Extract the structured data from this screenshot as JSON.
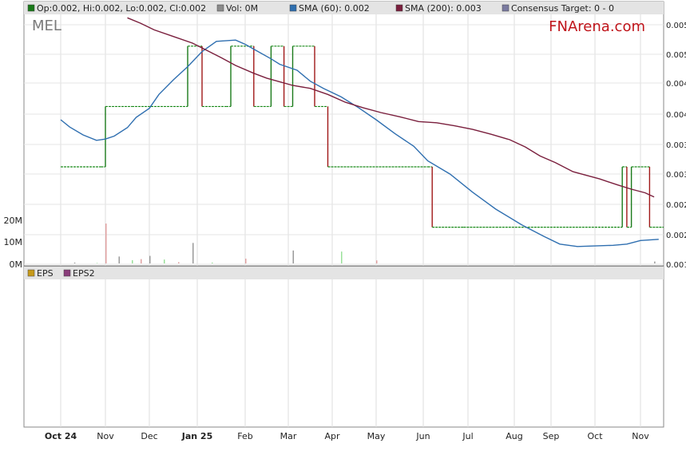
{
  "chart_data": {
    "type": "line",
    "ticker": "MEL",
    "brand": "FNArena.com",
    "legend_top": [
      {
        "label": "Op:0.002, Hi:0.002, Lo:0.002, Cl:0.002",
        "color": "#1a7a1a"
      },
      {
        "label": "Vol: 0M",
        "color": "#8a8a8a"
      },
      {
        "label": "SMA (60): 0.002",
        "color": "#2f6fb0"
      },
      {
        "label": "SMA (200): 0.003",
        "color": "#7a1f3d"
      },
      {
        "label": "Consensus Target: 0 - 0",
        "color": "#7a7aa0"
      }
    ],
    "legend_bottom": [
      {
        "label": "EPS",
        "color": "#c79a1a"
      },
      {
        "label": "EPS2",
        "color": "#8a3d7a"
      }
    ],
    "x_ticks": [
      "Oct 24",
      "Nov",
      "Dec",
      "Jan 25",
      "Feb",
      "Mar",
      "Apr",
      "May",
      "Jun",
      "Jul",
      "Aug",
      "Sep",
      "Oct",
      "Nov"
    ],
    "x_ticks_bold": [
      "Oct 24",
      "Jan 25"
    ],
    "price_ticks": [
      "0.005",
      "0.005",
      "0.004",
      "0.004",
      "0.003",
      "0.003",
      "0.002",
      "0.002",
      "0.001"
    ],
    "volume_ticks": [
      "20M",
      "10M",
      "0M"
    ],
    "ylim": [
      0.0014,
      0.0055
    ],
    "grid": true,
    "price_x": [
      0,
      0.9,
      1.0,
      1.6,
      2.3,
      2.8,
      3.1,
      3.6,
      3.7,
      4.2,
      4.6,
      4.9,
      5.1,
      5.6,
      5.9,
      8.1,
      8.2,
      8.9,
      9.6,
      12.0,
      12.6,
      12.7,
      12.8,
      13.2
    ],
    "price_values": [
      0.003,
      0.003,
      0.004,
      0.004,
      0.004,
      0.005,
      0.004,
      0.004,
      0.005,
      0.004,
      0.005,
      0.004,
      0.005,
      0.004,
      0.003,
      0.003,
      0.002,
      0.002,
      0.002,
      0.002,
      0.003,
      0.002,
      0.003,
      0.002
    ],
    "sma60_x": [
      0.0,
      0.2,
      0.5,
      0.8,
      1.0,
      1.2,
      1.5,
      1.7,
      2.0,
      2.2,
      2.5,
      2.8,
      3.1,
      3.4,
      3.8,
      4.0,
      4.3,
      4.6,
      4.8,
      5.2,
      5.5,
      5.8,
      6.2,
      6.6,
      7.0,
      7.4,
      7.8,
      8.1,
      8.6,
      9.1,
      9.6,
      10.2,
      10.8,
      11.2,
      11.6,
      12.0,
      12.4,
      12.7,
      13.0,
      13.4
    ],
    "sma60_values": [
      0.00378,
      0.00366,
      0.00353,
      0.00344,
      0.00346,
      0.00351,
      0.00365,
      0.00382,
      0.00397,
      0.0042,
      0.00444,
      0.00466,
      0.00491,
      0.00508,
      0.0051,
      0.00503,
      0.00491,
      0.00479,
      0.0047,
      0.0046,
      0.00442,
      0.0043,
      0.00416,
      0.00398,
      0.00378,
      0.00355,
      0.00334,
      0.0031,
      0.00288,
      0.00258,
      0.0023,
      0.00204,
      0.00185,
      0.00172,
      0.00168,
      0.00169,
      0.0017,
      0.00172,
      0.00178,
      0.0018
    ],
    "sma200_x": [
      1.5,
      1.8,
      2.1,
      2.5,
      2.9,
      3.2,
      3.5,
      3.8,
      4.2,
      4.5,
      4.8,
      5.1,
      5.5,
      5.9,
      6.3,
      6.7,
      7.1,
      7.5,
      7.9,
      8.3,
      8.7,
      9.1,
      9.5,
      9.9,
      10.3,
      10.7,
      11.1,
      11.5,
      11.8,
      12.1,
      12.5,
      12.8,
      13.1,
      13.3
    ],
    "sma200_values": [
      0.00547,
      0.00538,
      0.00527,
      0.00516,
      0.00505,
      0.00493,
      0.00481,
      0.00468,
      0.00455,
      0.00447,
      0.00441,
      0.00435,
      0.0043,
      0.0042,
      0.00407,
      0.00398,
      0.0039,
      0.00383,
      0.00375,
      0.00373,
      0.00368,
      0.00362,
      0.00354,
      0.00345,
      0.00333,
      0.00318,
      0.00307,
      0.00292,
      0.00286,
      0.0028,
      0.0027,
      0.00263,
      0.00257,
      0.0025
    ],
    "volume_m": [
      0.4,
      0.2,
      18.5,
      3.2,
      1.5,
      2.0,
      3.5,
      1.8,
      0.6,
      9.5,
      0.4,
      2.2,
      6.0,
      5.5,
      1.4,
      0.9
    ],
    "volume_x": [
      0.3,
      0.8,
      1.0,
      1.3,
      1.6,
      1.8,
      2.0,
      2.3,
      2.6,
      2.9,
      3.3,
      4.0,
      5.1,
      6.2,
      7.0,
      13.3
    ]
  }
}
